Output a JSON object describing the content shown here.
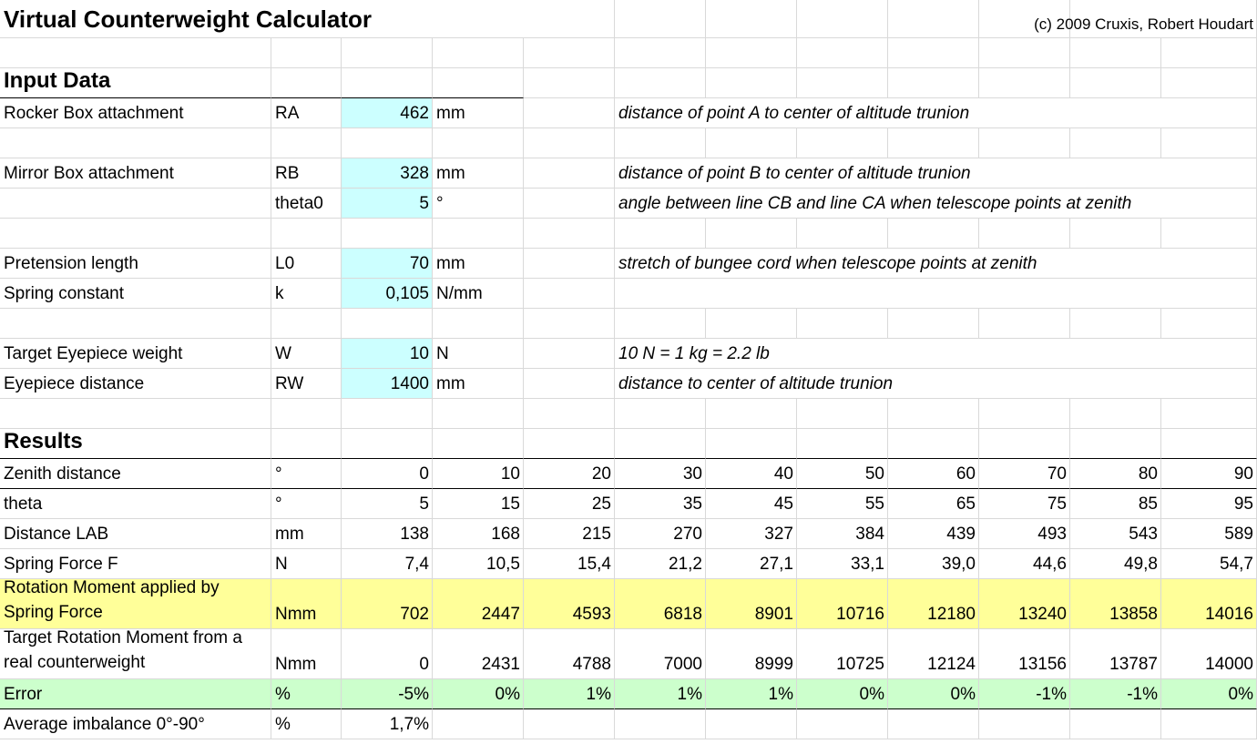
{
  "title": "Virtual Counterweight Calculator",
  "copyright": "(c) 2009 Cruxis, Robert Houdart",
  "input": {
    "heading": "Input Data",
    "rows": [
      {
        "label": "Rocker Box attachment",
        "symbol": "RA",
        "value": "462",
        "unit": "mm",
        "note": "distance of point A to center of altitude trunion"
      },
      {
        "label": "Mirror Box attachment",
        "symbol": "RB",
        "value": "328",
        "unit": "mm",
        "note": "distance of point B to center of altitude trunion"
      },
      {
        "label": "",
        "symbol": "theta0",
        "value": "5",
        "unit": "°",
        "note": "angle between line CB and line CA when telescope points at zenith"
      },
      {
        "label": "Pretension length",
        "symbol": "L0",
        "value": "70",
        "unit": "mm",
        "note": "stretch of bungee cord when telescope points at zenith"
      },
      {
        "label": "Spring constant",
        "symbol": "k",
        "value": "0,105",
        "unit": "N/mm",
        "note": ""
      },
      {
        "label": "Target Eyepiece weight",
        "symbol": "W",
        "value": "10",
        "unit": "N",
        "note": "10 N = 1 kg = 2.2 lb"
      },
      {
        "label": "Eyepiece distance",
        "symbol": "RW",
        "value": "1400",
        "unit": "mm",
        "note": "distance to center of altitude trunion"
      }
    ]
  },
  "results": {
    "heading": "Results",
    "rows": [
      {
        "label": "Zenith distance",
        "unit": "°",
        "values": [
          "0",
          "10",
          "20",
          "30",
          "40",
          "50",
          "60",
          "70",
          "80",
          "90"
        ]
      },
      {
        "label": "theta",
        "unit": "°",
        "values": [
          "5",
          "15",
          "25",
          "35",
          "45",
          "55",
          "65",
          "75",
          "85",
          "95"
        ]
      },
      {
        "label": "Distance LAB",
        "unit": "mm",
        "values": [
          "138",
          "168",
          "215",
          "270",
          "327",
          "384",
          "439",
          "493",
          "543",
          "589"
        ]
      },
      {
        "label": "Spring Force F",
        "unit": "N",
        "values": [
          "7,4",
          "10,5",
          "15,4",
          "21,2",
          "27,1",
          "33,1",
          "39,0",
          "44,6",
          "49,8",
          "54,7"
        ]
      },
      {
        "label": "Rotation Moment applied by Spring Force",
        "unit": "Nmm",
        "values": [
          "702",
          "2447",
          "4593",
          "6818",
          "8901",
          "10716",
          "12180",
          "13240",
          "13858",
          "14016"
        ]
      },
      {
        "label": "Target Rotation Moment from a real counterweight",
        "unit": "Nmm",
        "values": [
          "0",
          "2431",
          "4788",
          "7000",
          "8999",
          "10725",
          "12124",
          "13156",
          "13787",
          "14000"
        ]
      },
      {
        "label": "Error",
        "unit": "%",
        "values": [
          "-5%",
          "0%",
          "1%",
          "1%",
          "1%",
          "0%",
          "0%",
          "-1%",
          "-1%",
          "0%"
        ]
      },
      {
        "label": "Average imbalance 0°-90°",
        "unit": "%",
        "values": [
          "1,7%"
        ]
      }
    ]
  },
  "colors": {
    "input_fill": "#ccffff",
    "spring_moment_fill": "#ffff99",
    "error_fill": "#ccffcc",
    "gridline": "#d9d9d9"
  }
}
